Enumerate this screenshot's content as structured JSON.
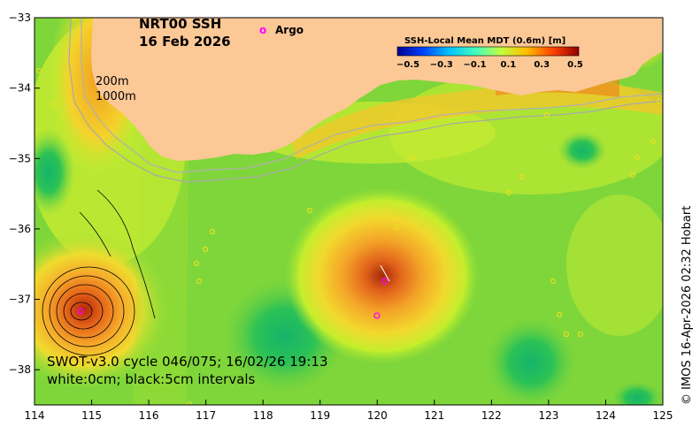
{
  "title": {
    "line1": "NRT00 SSH",
    "line2": "16 Feb 2026"
  },
  "legend": {
    "argo_symbol": "o",
    "argo_label": "Argo",
    "argo_color": "#ff00ff"
  },
  "colorbar": {
    "label": "SSH-Local Mean MDT (0.6m) [m]",
    "ticks": [
      "-0.5",
      "-0.3",
      "-0.1",
      "0.1",
      "0.3",
      "0.5"
    ],
    "colors": [
      "#00008f",
      "#0040ff",
      "#00bfff",
      "#40ffbf",
      "#bfff40",
      "#ffbf00",
      "#ff4000",
      "#8f0000"
    ]
  },
  "isobaths": [
    "200m",
    "1000m"
  ],
  "annotation": {
    "line1": "SWOT-v3.0 cycle 046/075; 16/02/26 19:13",
    "line2": "white:0cm; black:5cm intervals"
  },
  "credit": "© IMOS 16-Apr-2026 02:32 Hobart",
  "axes": {
    "x_ticks": [
      "114",
      "115",
      "116",
      "117",
      "118",
      "119",
      "120",
      "121",
      "122",
      "123",
      "124",
      "125"
    ],
    "y_ticks": [
      "-33",
      "-34",
      "-35",
      "-36",
      "-37",
      "-38"
    ],
    "lon_range": [
      114,
      125
    ],
    "lat_range": [
      -38.5,
      -33
    ]
  },
  "colors": {
    "land": "#fbc896",
    "ocean_base": "#7fd63a",
    "high_anomaly": "#c23b0a",
    "low_anomaly": "#11b85b"
  }
}
